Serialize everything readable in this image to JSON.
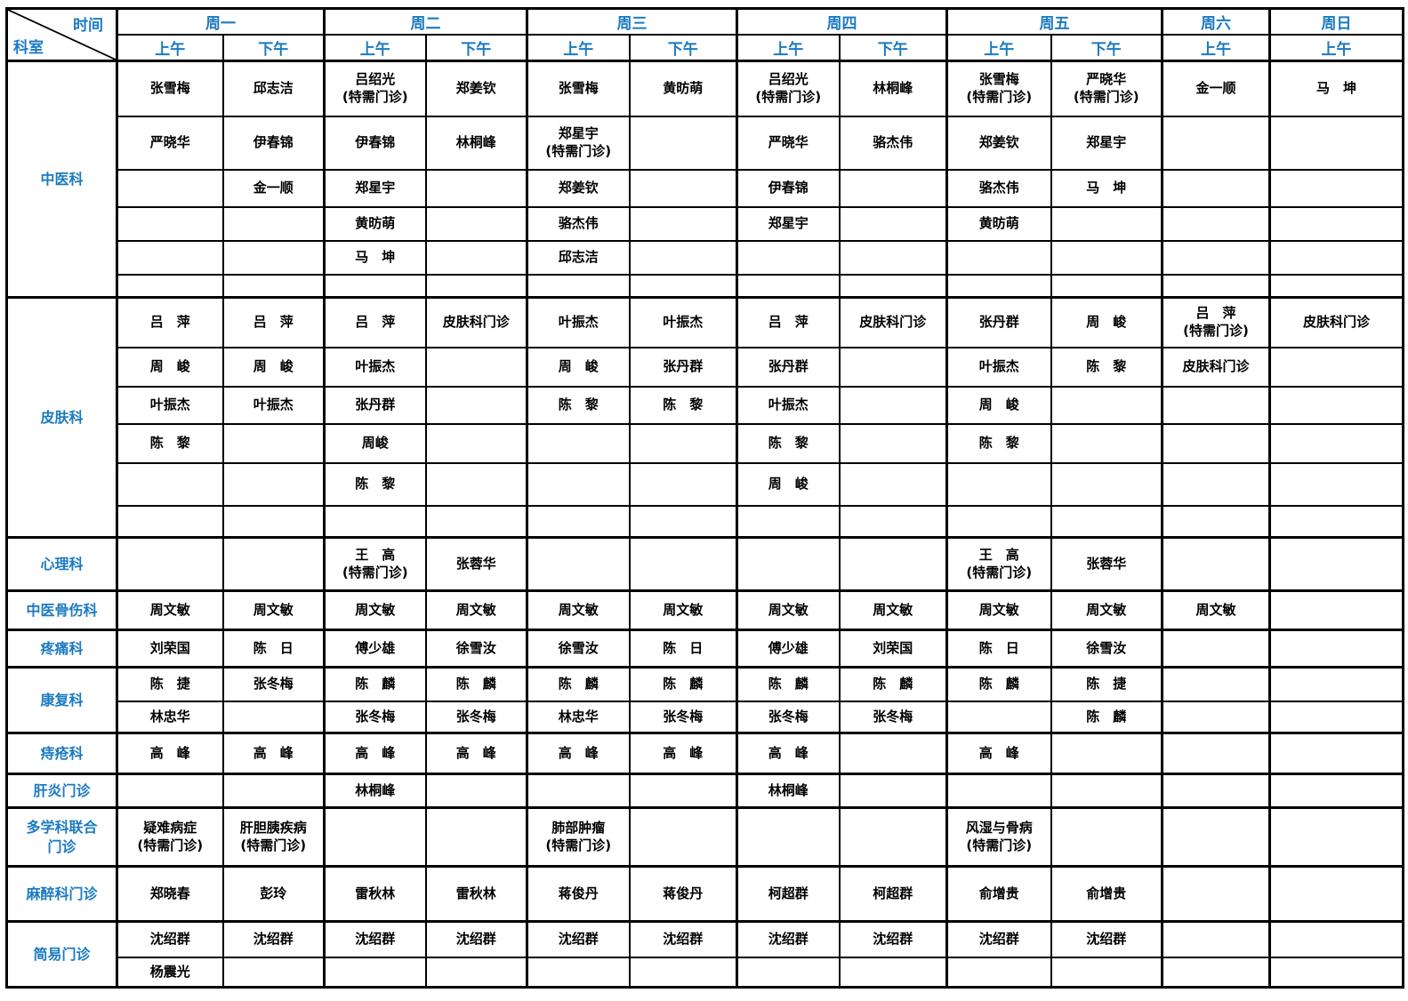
{
  "colors": {
    "accent": "#1b7ac1",
    "border": "#000000",
    "background": "#ffffff"
  },
  "header": {
    "corner": {
      "time_label": "时间",
      "department_label": "科室"
    },
    "days": [
      {
        "label": "周一",
        "cols": 2
      },
      {
        "label": "周二",
        "cols": 2
      },
      {
        "label": "周三",
        "cols": 2
      },
      {
        "label": "周四",
        "cols": 2
      },
      {
        "label": "周五",
        "cols": 2
      },
      {
        "label": "周六",
        "cols": 1
      },
      {
        "label": "周日",
        "cols": 1
      }
    ],
    "periods": [
      "上午",
      "下午",
      "上午",
      "下午",
      "上午",
      "下午",
      "上午",
      "下午",
      "上午",
      "下午",
      "上午",
      "上午"
    ]
  },
  "sections": [
    {
      "department": "中医科",
      "rows": [
        [
          "张雪梅",
          "邱志洁",
          "吕绍光\n(特需门诊)",
          "郑姜钦",
          "张雪梅",
          "黄昉萌",
          "吕绍光\n(特需门诊)",
          "林桐峰",
          "张雪梅\n(特需门诊)",
          "严晓华\n(特需门诊)",
          "金一顺",
          "马　坤"
        ],
        [
          "严晓华",
          "伊春锦",
          "伊春锦",
          "林桐峰",
          "郑星宇\n(特需门诊)",
          "",
          "严晓华",
          "骆杰伟",
          "郑姜钦",
          "郑星宇",
          "",
          ""
        ],
        [
          "",
          "金一顺",
          "郑星宇",
          "",
          "郑姜钦",
          "",
          "伊春锦",
          "",
          "骆杰伟",
          "马　坤",
          "",
          ""
        ],
        [
          "",
          "",
          "黄昉萌",
          "",
          "骆杰伟",
          "",
          "郑星宇",
          "",
          "黄昉萌",
          "",
          "",
          ""
        ],
        [
          "",
          "",
          "马　坤",
          "",
          "邱志洁",
          "",
          "",
          "",
          "",
          "",
          "",
          ""
        ],
        [
          "",
          "",
          "",
          "",
          "",
          "",
          "",
          "",
          "",
          "",
          "",
          ""
        ]
      ]
    },
    {
      "department": "皮肤科",
      "rows": [
        [
          "吕　萍",
          "吕　萍",
          "吕　萍",
          "皮肤科门诊",
          "叶振杰",
          "叶振杰",
          "吕　萍",
          "皮肤科门诊",
          "张丹群",
          "周　峻",
          "吕　萍\n(特需门诊)",
          "皮肤科门诊"
        ],
        [
          "周　峻",
          "周　峻",
          "叶振杰",
          "",
          "周　峻",
          "张丹群",
          "张丹群",
          "",
          "叶振杰",
          "陈　黎",
          "皮肤科门诊",
          ""
        ],
        [
          "叶振杰",
          "叶振杰",
          "张丹群",
          "",
          "陈　黎",
          "陈　黎",
          "叶振杰",
          "",
          "周　峻",
          "",
          "",
          ""
        ],
        [
          "陈　黎",
          "",
          "周峻",
          "",
          "",
          "",
          "陈　黎",
          "",
          "陈　黎",
          "",
          "",
          ""
        ],
        [
          "",
          "",
          "陈　黎",
          "",
          "",
          "",
          "周　峻",
          "",
          "",
          "",
          "",
          ""
        ],
        [
          "",
          "",
          "",
          "",
          "",
          "",
          "",
          "",
          "",
          "",
          "",
          ""
        ]
      ]
    },
    {
      "department": "心理科",
      "rows": [
        [
          "",
          "",
          "王　高\n(特需门诊)",
          "张蓉华",
          "",
          "",
          "",
          "",
          "王　高\n(特需门诊)",
          "张蓉华",
          "",
          ""
        ]
      ]
    },
    {
      "department": "中医骨伤科",
      "rows": [
        [
          "周文敏",
          "周文敏",
          "周文敏",
          "周文敏",
          "周文敏",
          "周文敏",
          "周文敏",
          "周文敏",
          "周文敏",
          "周文敏",
          "周文敏",
          ""
        ]
      ]
    },
    {
      "department": "疼痛科",
      "rows": [
        [
          "刘荣国",
          "陈　日",
          "傅少雄",
          "徐雪汝",
          "徐雪汝",
          "陈　日",
          "傅少雄",
          "刘荣国",
          "陈　日",
          "徐雪汝",
          "",
          ""
        ]
      ]
    },
    {
      "department": "康复科",
      "rows": [
        [
          "陈　捷",
          "张冬梅",
          "陈　麟",
          "陈　麟",
          "陈　麟",
          "陈　麟",
          "陈　麟",
          "陈　麟",
          "陈　麟",
          "陈　捷",
          "",
          ""
        ],
        [
          "林忠华",
          "",
          "张冬梅",
          "张冬梅",
          "林忠华",
          "张冬梅",
          "张冬梅",
          "张冬梅",
          "",
          "陈　麟",
          "",
          ""
        ]
      ]
    },
    {
      "department": "痔疮科",
      "rows": [
        [
          "高　峰",
          "高　峰",
          "高　峰",
          "高　峰",
          "高　峰",
          "高　峰",
          "高　峰",
          "",
          "高　峰",
          "",
          "",
          ""
        ]
      ]
    },
    {
      "department": "肝炎门诊",
      "rows": [
        [
          "",
          "",
          "林桐峰",
          "",
          "",
          "",
          "林桐峰",
          "",
          "",
          "",
          "",
          ""
        ]
      ]
    },
    {
      "department": "多学科联合\n门诊",
      "rows": [
        [
          "疑难病症\n(特需门诊)",
          "肝胆胰疾病\n(特需门诊)",
          "",
          "",
          "肺部肿瘤\n(特需门诊)",
          "",
          "",
          "",
          "风湿与骨病\n(特需门诊)",
          "",
          "",
          ""
        ]
      ]
    },
    {
      "department": "麻醉科门诊",
      "rows": [
        [
          "郑晓春",
          "彭玲",
          "雷秋林",
          "雷秋林",
          "蒋俊丹",
          "蒋俊丹",
          "柯超群",
          "柯超群",
          "俞增贵",
          "俞增贵",
          "",
          ""
        ]
      ]
    },
    {
      "department": "简易门诊",
      "rows": [
        [
          "沈绍群",
          "沈绍群",
          "沈绍群",
          "沈绍群",
          "沈绍群",
          "沈绍群",
          "沈绍群",
          "沈绍群",
          "沈绍群",
          "沈绍群",
          "",
          ""
        ],
        [
          "杨震光",
          "",
          "",
          "",
          "",
          "",
          "",
          "",
          "",
          "",
          "",
          ""
        ]
      ]
    }
  ]
}
